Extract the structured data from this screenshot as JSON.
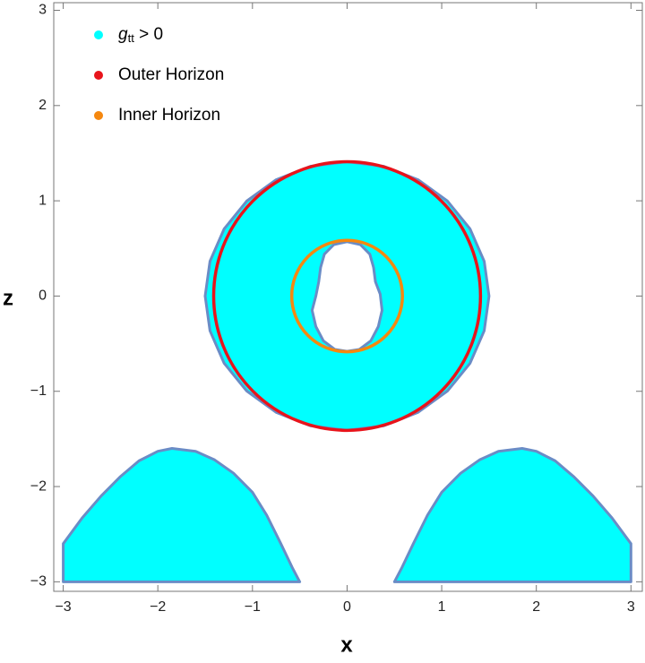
{
  "chart_data": {
    "type": "region",
    "xlabel": "x",
    "ylabel": "z",
    "xlim": [
      -3.1,
      3.12
    ],
    "ylim": [
      -3.1,
      3.08
    ],
    "xticks": [
      {
        "value": -3,
        "label": "−3"
      },
      {
        "value": -2,
        "label": "−2"
      },
      {
        "value": -1,
        "label": "−1"
      },
      0,
      1,
      2,
      3
    ],
    "yticks": [
      {
        "value": -3,
        "label": "−3"
      },
      {
        "value": -2,
        "label": "−2"
      },
      {
        "value": -1,
        "label": "−1"
      },
      0,
      1,
      2,
      3
    ],
    "legend": "top-left",
    "series": [
      {
        "name": "g",
        "name_subscript": "tt",
        "name_suffix": " > 0",
        "color": "#00ffff",
        "edge_color": "#6a8cc6",
        "polygons": [
          {
            "x": [
              1.5,
              1.449,
              1.299,
              1.061,
              0.75,
              0.388,
              0,
              -0.388,
              -0.75,
              -1.061,
              -1.299,
              -1.449,
              -1.5,
              -1.449,
              -1.299,
              -1.061,
              -0.75,
              -0.388,
              0,
              0.388,
              0.75,
              1.061,
              1.299,
              1.449
            ],
            "y": [
              0,
              0.365,
              0.705,
              0.997,
              1.221,
              1.362,
              1.41,
              1.362,
              1.221,
              0.997,
              0.705,
              0.365,
              0,
              -0.365,
              -0.705,
              -0.997,
              -1.221,
              -1.362,
              -1.41,
              -1.362,
              -1.221,
              -0.997,
              -0.705,
              -0.365
            ]
          },
          {
            "hole": true,
            "x": [
              0,
              0.14,
              0.24,
              0.28,
              0.3,
              0.35,
              0.37,
              0.33,
              0.25,
              0.13,
              0,
              -0.13,
              -0.25,
              -0.33,
              -0.37,
              -0.33,
              -0.3,
              -0.28,
              -0.24,
              -0.14
            ],
            "y": [
              0.57,
              0.54,
              0.44,
              0.3,
              0.15,
              0.02,
              -0.15,
              -0.32,
              -0.47,
              -0.56,
              -0.58,
              -0.56,
              -0.47,
              -0.32,
              -0.15,
              0,
              0.15,
              0.3,
              0.44,
              0.54
            ]
          },
          {
            "x": [
              -3,
              -3,
              -2.8,
              -2.6,
              -2.4,
              -2.2,
              -2,
              -1.85,
              -1.6,
              -1.4,
              -1.2,
              -1,
              -0.85,
              -0.7,
              -0.58,
              -0.5
            ],
            "y": [
              -3,
              -2.6,
              -2.33,
              -2.1,
              -1.9,
              -1.73,
              -1.63,
              -1.6,
              -1.63,
              -1.72,
              -1.86,
              -2.06,
              -2.3,
              -2.6,
              -2.85,
              -3
            ]
          },
          {
            "x": [
              0.5,
              0.58,
              0.7,
              0.85,
              1,
              1.2,
              1.4,
              1.6,
              1.85,
              2,
              2.2,
              2.4,
              2.6,
              2.8,
              3,
              3
            ],
            "y": [
              -3,
              -2.85,
              -2.6,
              -2.3,
              -2.06,
              -1.86,
              -1.72,
              -1.63,
              -1.6,
              -1.63,
              -1.73,
              -1.9,
              -2.1,
              -2.33,
              -2.6,
              -3
            ]
          }
        ]
      }
    ],
    "circles": [
      {
        "name": "Outer Horizon",
        "color": "#e8141b",
        "center": [
          0,
          0
        ],
        "radius": 1.41
      },
      {
        "name": "Inner Horizon",
        "color": "#f5880f",
        "center": [
          0,
          0
        ],
        "radius": 0.585
      }
    ]
  }
}
